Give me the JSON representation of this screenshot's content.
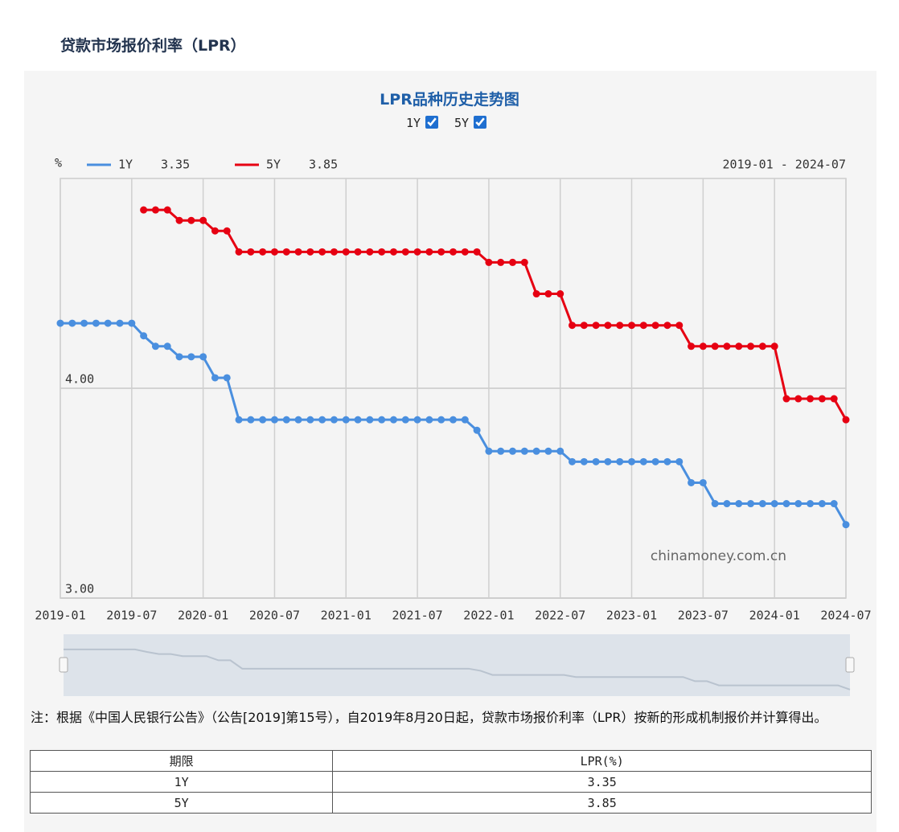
{
  "header": {
    "title": "贷款市场报价利率（LPR）"
  },
  "chart_data": {
    "type": "line",
    "title": "LPR品种历史走势图",
    "y_unit": "%",
    "range_label": "2019-01 - 2024-07",
    "watermark": "chinamoney.com.cn",
    "categories": [
      "2019-01",
      null,
      null,
      null,
      null,
      null,
      "2019-07",
      null,
      null,
      null,
      null,
      null,
      "2020-01",
      null,
      null,
      null,
      null,
      null,
      "2020-07",
      null,
      null,
      null,
      null,
      null,
      "2021-01",
      null,
      null,
      null,
      null,
      null,
      "2021-07",
      null,
      null,
      null,
      null,
      null,
      "2022-01",
      null,
      null,
      null,
      null,
      null,
      "2022-07",
      null,
      null,
      null,
      null,
      null,
      "2023-01",
      null,
      null,
      null,
      null,
      null,
      "2023-07",
      null,
      null,
      null,
      null,
      null,
      "2024-01",
      null,
      null,
      null,
      null,
      null,
      "2024-07"
    ],
    "series": [
      {
        "name": "1Y",
        "color": "#4a8fdf",
        "values": [
          4.31,
          4.31,
          4.31,
          4.31,
          4.31,
          4.31,
          4.31,
          4.25,
          4.2,
          4.2,
          4.15,
          4.15,
          4.15,
          4.05,
          4.05,
          3.85,
          3.85,
          3.85,
          3.85,
          3.85,
          3.85,
          3.85,
          3.85,
          3.85,
          3.85,
          3.85,
          3.85,
          3.85,
          3.85,
          3.85,
          3.85,
          3.85,
          3.85,
          3.85,
          3.85,
          3.8,
          3.7,
          3.7,
          3.7,
          3.7,
          3.7,
          3.7,
          3.7,
          3.65,
          3.65,
          3.65,
          3.65,
          3.65,
          3.65,
          3.65,
          3.65,
          3.65,
          3.65,
          3.55,
          3.55,
          3.45,
          3.45,
          3.45,
          3.45,
          3.45,
          3.45,
          3.45,
          3.45,
          3.45,
          3.45,
          3.45,
          3.35
        ]
      },
      {
        "name": "5Y",
        "color": "#e60012",
        "values": [
          null,
          null,
          null,
          null,
          null,
          null,
          null,
          4.85,
          4.85,
          4.85,
          4.8,
          4.8,
          4.8,
          4.75,
          4.75,
          4.65,
          4.65,
          4.65,
          4.65,
          4.65,
          4.65,
          4.65,
          4.65,
          4.65,
          4.65,
          4.65,
          4.65,
          4.65,
          4.65,
          4.65,
          4.65,
          4.65,
          4.65,
          4.65,
          4.65,
          4.65,
          4.6,
          4.6,
          4.6,
          4.6,
          4.45,
          4.45,
          4.45,
          4.3,
          4.3,
          4.3,
          4.3,
          4.3,
          4.3,
          4.3,
          4.3,
          4.3,
          4.3,
          4.2,
          4.2,
          4.2,
          4.2,
          4.2,
          4.2,
          4.2,
          4.2,
          3.95,
          3.95,
          3.95,
          3.95,
          3.95,
          3.85
        ]
      }
    ],
    "ylim": [
      3,
      5
    ],
    "yticks": [
      {
        "value": 3,
        "label": "3.00"
      },
      {
        "value": 4,
        "label": "4.00"
      }
    ],
    "grid": true
  },
  "note": "注：根据《中国人民银行公告》（公告[2019]第15号），自2019年8月20日起，贷款市场报价利率（LPR）按新的形成机制报价并计算得出。",
  "table": {
    "header": [
      "期限",
      "LPR(%)"
    ],
    "rows": [
      [
        "1Y",
        "3.35"
      ],
      [
        "5Y",
        "3.85"
      ]
    ]
  }
}
